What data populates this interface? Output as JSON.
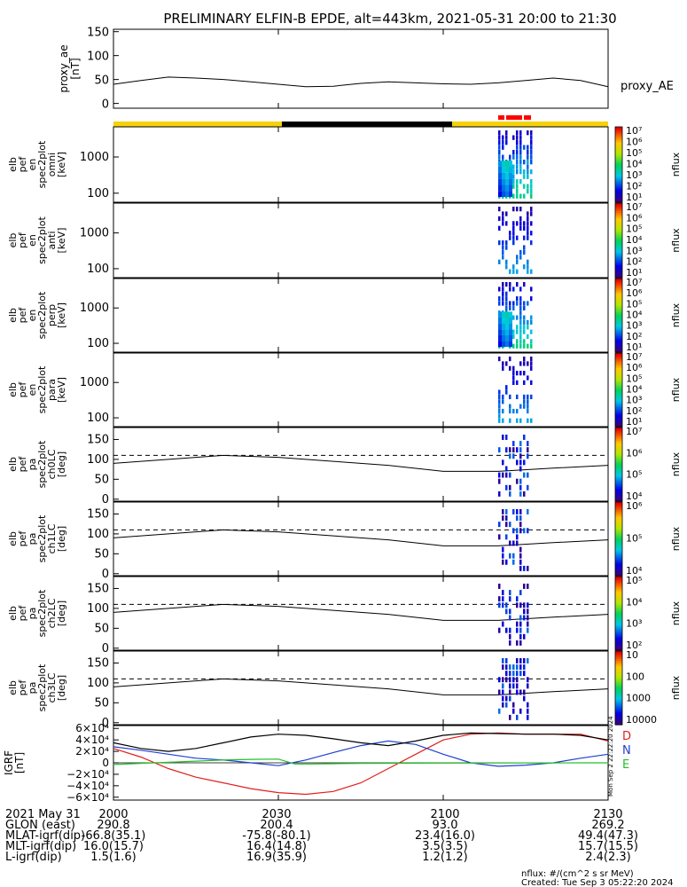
{
  "title": "PRELIMINARY ELFIN-B EPDE, alt=443km, 2021-05-31 20:00 to 21:30",
  "chart_data": [
    {
      "type": "line",
      "panel": "proxy_ae",
      "ylabel_lines": [
        "proxy_ae",
        "[nT]"
      ],
      "side_label": "proxy_AE",
      "ylim": [
        -10,
        155
      ],
      "yticks": [
        "150",
        "100",
        "50",
        "0"
      ],
      "ytick_values": [
        150,
        100,
        50,
        0
      ],
      "x": [
        0,
        5,
        10,
        15,
        20,
        25,
        30,
        35,
        40,
        45,
        50,
        55,
        60,
        65,
        70,
        75,
        80,
        85,
        90
      ],
      "y": [
        40,
        48,
        55,
        53,
        50,
        45,
        40,
        35,
        36,
        42,
        45,
        43,
        41,
        40,
        43,
        48,
        53,
        48,
        35
      ]
    },
    {
      "type": "heatmap",
      "panel": "omni",
      "ylabel_lines": [
        "elb",
        "pef",
        "en",
        "spec2plot",
        "omni",
        "[keV]"
      ],
      "yticks": [
        "1000",
        "100"
      ],
      "colorbar_ticks": [
        "10¹",
        "10²",
        "10³",
        "10⁴",
        "10⁵",
        "10⁶",
        "10⁷"
      ],
      "colorbar_label": "nflux"
    },
    {
      "type": "heatmap",
      "panel": "anti",
      "ylabel_lines": [
        "elb",
        "pef",
        "en",
        "spec2plot",
        "anti",
        "[keV]"
      ],
      "yticks": [
        "1000",
        "100"
      ],
      "colorbar_ticks": [
        "10¹",
        "10²",
        "10³",
        "10⁴",
        "10⁵",
        "10⁶",
        "10⁷"
      ],
      "colorbar_label": "nflux"
    },
    {
      "type": "heatmap",
      "panel": "perp",
      "ylabel_lines": [
        "elb",
        "pef",
        "en",
        "spec2plot",
        "perp",
        "[keV]"
      ],
      "yticks": [
        "1000",
        "100"
      ],
      "colorbar_ticks": [
        "10¹",
        "10²",
        "10³",
        "10⁴",
        "10⁵",
        "10⁶",
        "10⁷"
      ],
      "colorbar_label": "nflux"
    },
    {
      "type": "heatmap",
      "panel": "para",
      "ylabel_lines": [
        "elb",
        "pef",
        "en",
        "spec2plot",
        "para",
        "[keV]"
      ],
      "yticks": [
        "1000",
        "100"
      ],
      "colorbar_ticks": [
        "10¹",
        "10²",
        "10³",
        "10⁴",
        "10⁵",
        "10⁶",
        "10⁷"
      ],
      "colorbar_label": "nflux"
    },
    {
      "type": "heatmap",
      "panel": "ch0LC",
      "ylabel_lines": [
        "elb",
        "pef",
        "pa",
        "spec2plot",
        "ch0LC",
        "[deg]"
      ],
      "yticks": [
        "150",
        "100",
        "50",
        "0"
      ],
      "colorbar_ticks": [
        "10⁴",
        "10⁵",
        "10⁶",
        "10⁷"
      ],
      "colorbar_label": "nflux"
    },
    {
      "type": "heatmap",
      "panel": "ch1LC",
      "ylabel_lines": [
        "elb",
        "pef",
        "pa",
        "spec2plot",
        "ch1LC",
        "[deg]"
      ],
      "yticks": [
        "150",
        "100",
        "50",
        "0"
      ],
      "colorbar_ticks": [
        "10⁴",
        "10⁵",
        "10⁶"
      ],
      "colorbar_label": "nflux"
    },
    {
      "type": "heatmap",
      "panel": "ch2LC",
      "ylabel_lines": [
        "elb",
        "pef",
        "pa",
        "spec2plot",
        "ch2LC",
        "[deg]"
      ],
      "yticks": [
        "150",
        "100",
        "50",
        "0"
      ],
      "colorbar_ticks": [
        "10²",
        "10³",
        "10⁴",
        "10⁵"
      ],
      "colorbar_label": "nflux"
    },
    {
      "type": "heatmap",
      "panel": "ch3LC",
      "ylabel_lines": [
        "elb",
        "pef",
        "pa",
        "spec2plot",
        "ch3LC",
        "[deg]"
      ],
      "yticks": [
        "150",
        "100",
        "50",
        "0"
      ],
      "colorbar_ticks": [
        "10000",
        "1000",
        "100",
        "10"
      ],
      "colorbar_label": "nflux"
    },
    {
      "type": "line",
      "panel": "IGRF",
      "ylabel_lines": [
        "IGRF",
        "[nT]"
      ],
      "yticks": [
        "6×10⁴",
        "4×10⁴",
        "2×10⁴",
        "0",
        "−2×10⁴",
        "−4×10⁴",
        "−6×10⁴"
      ],
      "ytick_values": [
        60000,
        40000,
        20000,
        0,
        -20000,
        -40000,
        -60000
      ],
      "ylim": [
        -65000,
        65000
      ],
      "legend": [
        "D",
        "N",
        "E"
      ],
      "legend_colors": [
        "#e0201c",
        "#1f3fd0",
        "#22c02a"
      ],
      "series": [
        {
          "name": "D",
          "color": "#e0201c",
          "x": [
            0,
            5,
            10,
            15,
            20,
            25,
            30,
            35,
            40,
            45,
            50,
            55,
            60,
            65,
            70,
            75,
            80,
            85,
            90
          ],
          "y": [
            25000,
            10000,
            -10000,
            -25000,
            -35000,
            -45000,
            -52000,
            -55000,
            -50000,
            -35000,
            -10000,
            15000,
            40000,
            50000,
            52000,
            50000,
            50000,
            50000,
            38000
          ]
        },
        {
          "name": "N",
          "color": "#1f3fd0",
          "x": [
            0,
            5,
            10,
            15,
            20,
            25,
            30,
            35,
            40,
            45,
            50,
            55,
            60,
            65,
            70,
            75,
            80,
            85,
            90
          ],
          "y": [
            28000,
            22000,
            15000,
            8000,
            5000,
            0,
            -5000,
            5000,
            18000,
            30000,
            38000,
            32000,
            15000,
            0,
            -6000,
            -4000,
            0,
            8000,
            15000
          ]
        },
        {
          "name": "E",
          "color": "#22c02a",
          "x": [
            0,
            5,
            10,
            15,
            20,
            25,
            30,
            33,
            36,
            40,
            45,
            50,
            55,
            60,
            65,
            70,
            75,
            80,
            85,
            90
          ],
          "y": [
            -3000,
            -1000,
            1000,
            3000,
            5000,
            6000,
            6500,
            -2000,
            -2000,
            -1500,
            -1000,
            -800,
            -600,
            -500,
            -400,
            -300,
            -200,
            -100,
            0,
            0
          ]
        },
        {
          "name": "",
          "color": "#000000",
          "x": [
            0,
            5,
            10,
            15,
            20,
            25,
            30,
            35,
            40,
            45,
            50,
            55,
            60,
            65,
            70,
            75,
            80,
            85,
            90
          ],
          "y": [
            35000,
            25000,
            20000,
            25000,
            35000,
            45000,
            50000,
            48000,
            42000,
            35000,
            30000,
            38000,
            48000,
            52000,
            51000,
            50000,
            50000,
            48000,
            40000
          ]
        }
      ],
      "stamp": "Mon Sep  2 22:22:20 2024"
    }
  ],
  "x_axis": {
    "xlim": [
      0,
      90
    ],
    "tick_positions": [
      0,
      30,
      60,
      90
    ],
    "tick_labels": [
      "2000",
      "2030",
      "2100",
      "2130"
    ]
  },
  "ephem": {
    "rows": [
      {
        "label": "2021 May 31",
        "values": [
          "2000",
          "2030",
          "2100",
          "2130"
        ]
      },
      {
        "label": "GLON (east)",
        "values": [
          "290.8",
          "200.4",
          "93.0",
          "269.2"
        ]
      },
      {
        "label": "MLAT-igrf(dip)",
        "values": [
          "-66.8(35.1)",
          "-75.8(-80.1)",
          "23.4(16.0)",
          "49.4(47.3)"
        ]
      },
      {
        "label": "MLT-igrf(dip)",
        "values": [
          "16.0(15.7)",
          "16.4(14.8)",
          "3.5(3.5)",
          "15.7(15.5)"
        ]
      },
      {
        "label": "L-igrf(dip)",
        "values": [
          "1.5(1.6)",
          "16.9(35.9)",
          "1.2(1.2)",
          "2.4(2.3)"
        ]
      }
    ]
  },
  "footer": {
    "units": "nflux: #/(cm^2 s sr MeV)",
    "created": "Created: Tue Sep  3 05:22:20 2024"
  },
  "colors": {
    "sunlit_bar": "#f5d20a",
    "eclipse_bar": "#000000",
    "science_zone": "#ff0000"
  }
}
